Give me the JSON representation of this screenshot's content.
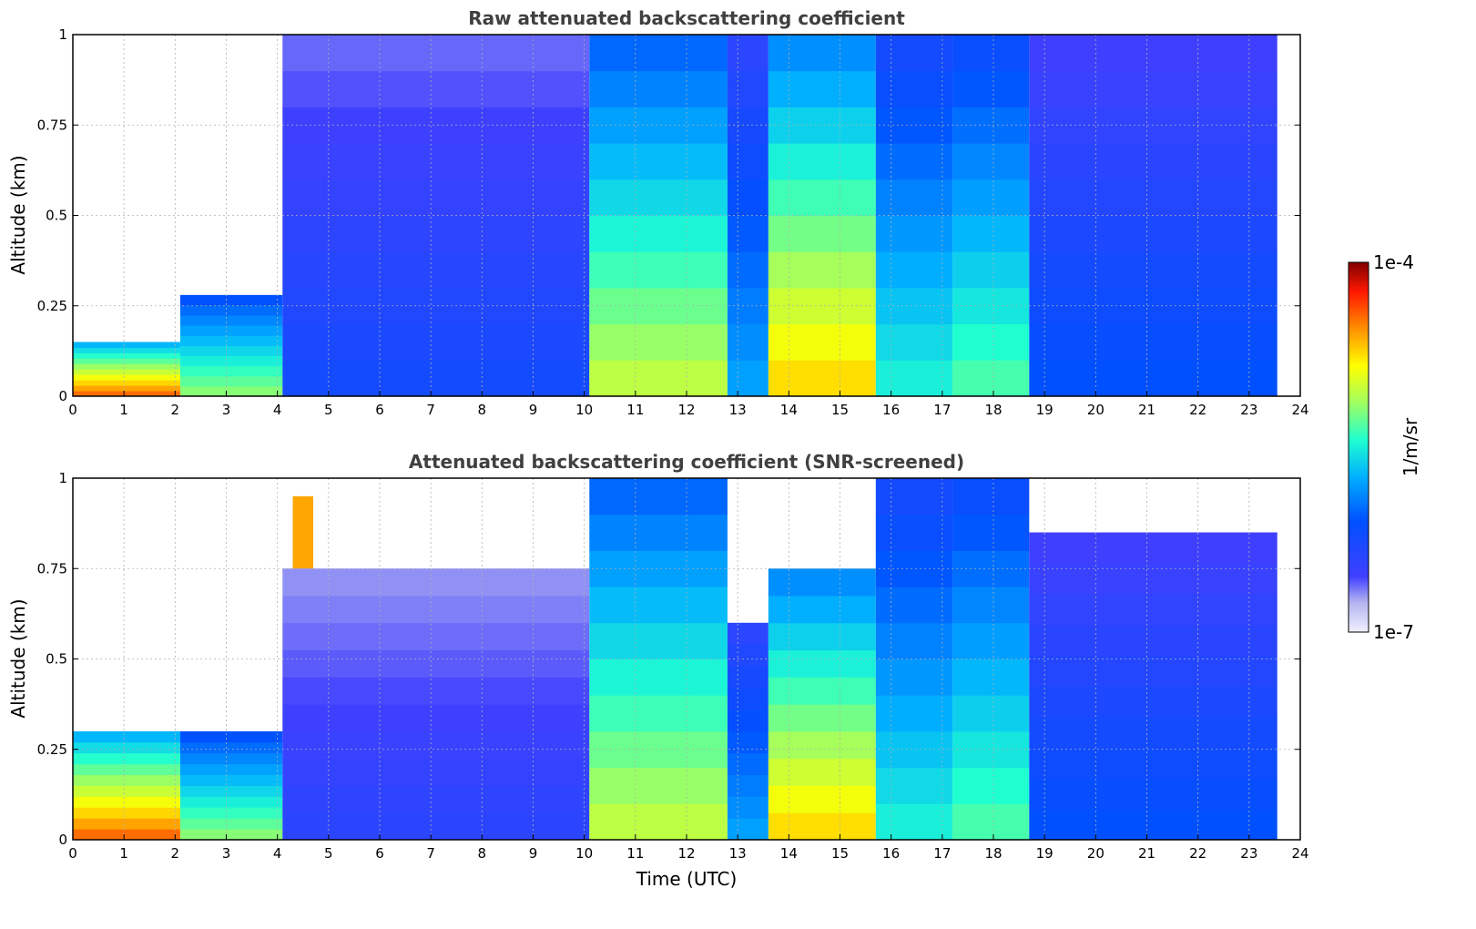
{
  "chart_data": {
    "type": "heatmap",
    "colorbar": {
      "min_label": "1e-7",
      "max_label": "1e-4",
      "unit": "1/m/sr",
      "scale": "log",
      "colormap": "jet (white/lavender for lowest values)"
    },
    "x_tick_labels": [
      "0",
      "1",
      "2",
      "3",
      "4",
      "5",
      "6",
      "7",
      "8",
      "9",
      "10",
      "11",
      "12",
      "13",
      "14",
      "15",
      "16",
      "17",
      "18",
      "19",
      "20",
      "21",
      "22",
      "23",
      "24"
    ],
    "y_tick_labels": [
      "0",
      "0.25",
      "0.5",
      "0.75",
      "1"
    ],
    "xlim": [
      0,
      24
    ],
    "ylim": [
      0,
      1
    ],
    "grid": true,
    "panels": [
      {
        "title": "Raw attenuated backscattering coefficient",
        "ylabel": "Altitude (km)",
        "xlabel": "",
        "segments": [
          {
            "t": [
              0,
              2.1
            ],
            "surface_top": 0.15,
            "cloud_level": 8.5,
            "above": "sparse noise"
          },
          {
            "t": [
              2.1,
              4.1
            ],
            "surface_top": 0.28,
            "cloud_level": 6,
            "above": "light noise"
          },
          {
            "t": [
              4.3,
              4.7
            ],
            "feature": "elevated layer 0.5-0.85 km",
            "cloud_level": 8
          },
          {
            "t": [
              4.1,
              10.1
            ],
            "surface_top": 1.0,
            "cloud_level": 2.5,
            "above": "blue noise"
          },
          {
            "t": [
              10.1,
              12.8
            ],
            "surface_top": 1.0,
            "cloud_level": 6.5
          },
          {
            "t": [
              12.8,
              13.6
            ],
            "surface_top": 1.0,
            "cloud_level": 4
          },
          {
            "t": [
              13.6,
              15.7
            ],
            "surface_top": 1.0,
            "cloud_level": 7.5
          },
          {
            "t": [
              15.7,
              17.2
            ],
            "surface_top": 1.0,
            "cloud_level": 5
          },
          {
            "t": [
              17.2,
              18.7
            ],
            "surface_top": 1.0,
            "cloud_level": 5.5
          },
          {
            "t": [
              18.7,
              23.55
            ],
            "surface_top": 1.0,
            "cloud_level": 3
          }
        ]
      },
      {
        "title": "Attenuated backscattering coefficient (SNR-screened)",
        "ylabel": "Altitude (km)",
        "xlabel": "Time (UTC)",
        "segments": [
          {
            "t": [
              0,
              2.1
            ],
            "surface_top": 0.3,
            "cloud_level": 8.5,
            "above": "screened (white)"
          },
          {
            "t": [
              2.1,
              4.1
            ],
            "surface_top": 0.3,
            "cloud_level": 6
          },
          {
            "t": [
              4.3,
              4.7
            ],
            "feature": "elevated layer 0.3-0.95 km",
            "cloud_level": 8
          },
          {
            "t": [
              4.1,
              10.1
            ],
            "surface_top": 0.75,
            "cloud_level": 2,
            "above": "screened (white)"
          },
          {
            "t": [
              10.1,
              12.8
            ],
            "surface_top": 1.0,
            "cloud_level": 6.5
          },
          {
            "t": [
              12.8,
              13.6
            ],
            "surface_top": 0.6,
            "cloud_level": 4
          },
          {
            "t": [
              13.6,
              15.7
            ],
            "surface_top": 0.75,
            "cloud_level": 7.5
          },
          {
            "t": [
              15.7,
              17.2
            ],
            "surface_top": 1.0,
            "cloud_level": 5
          },
          {
            "t": [
              17.2,
              18.7
            ],
            "surface_top": 1.0,
            "cloud_level": 5.5
          },
          {
            "t": [
              18.7,
              23.55
            ],
            "surface_top": 0.85,
            "cloud_level": 3
          }
        ]
      }
    ]
  }
}
